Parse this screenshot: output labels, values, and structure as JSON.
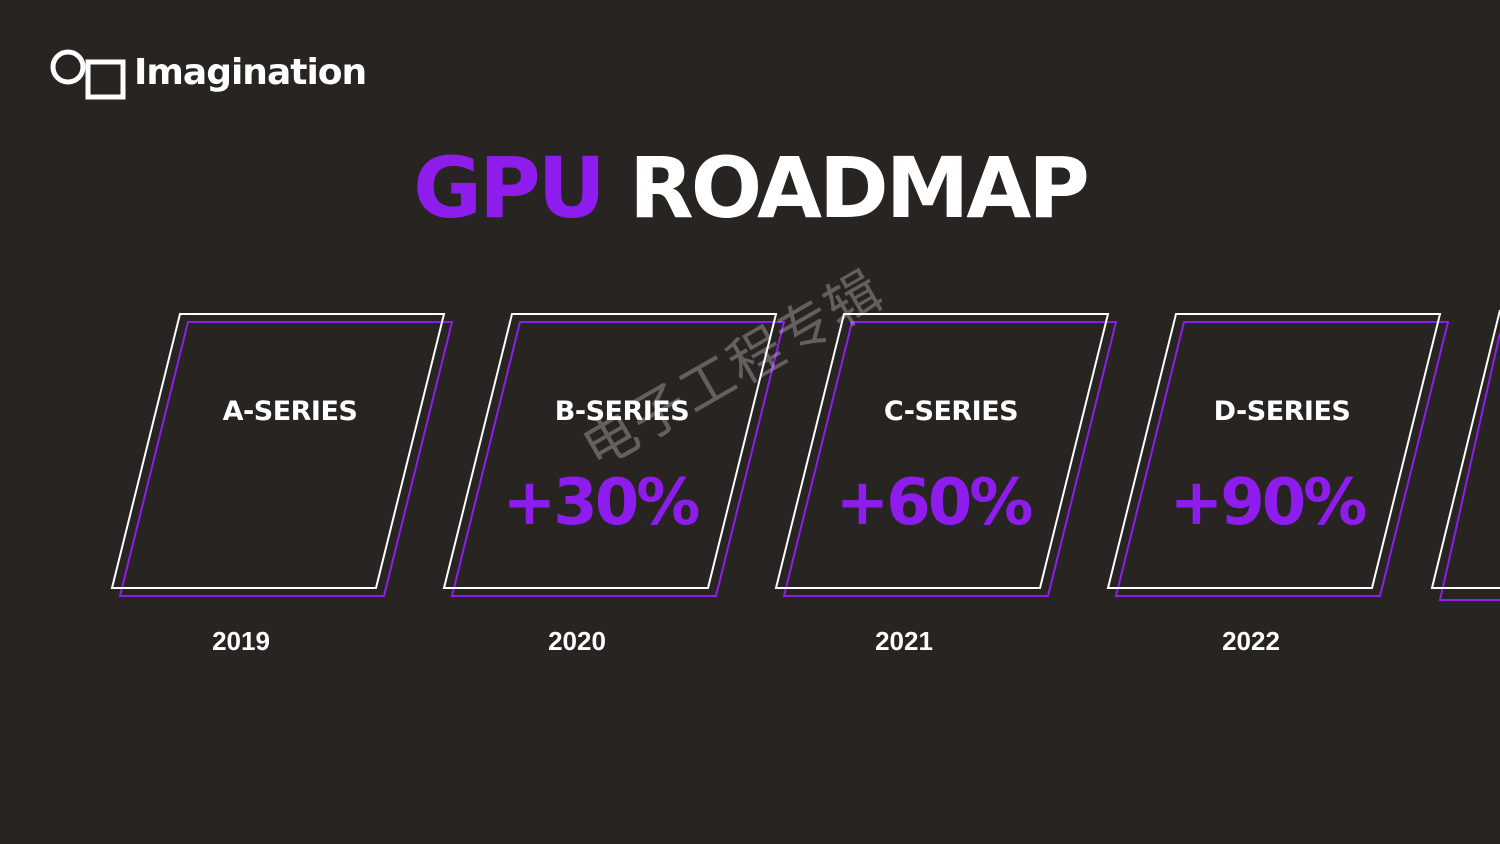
{
  "brand": {
    "logo_text": "Imagination",
    "logo_icon": "imagination-logo-icon"
  },
  "title": {
    "accent": "GPU",
    "main": "ROADMAP",
    "accent_color": "#8e1ded",
    "main_color": "#ffffff"
  },
  "colors": {
    "background": "#282421",
    "outline_white": "#ffffff",
    "outline_purple": "#8e1ded"
  },
  "roadmap": [
    {
      "series": "A-SERIES",
      "gain": "",
      "year": "2019"
    },
    {
      "series": "B-SERIES",
      "gain": "+30%",
      "year": "2020"
    },
    {
      "series": "C-SERIES",
      "gain": "+60%",
      "year": "2021"
    },
    {
      "series": "D-SERIES",
      "gain": "+90%",
      "year": "2022"
    }
  ],
  "watermark": "电子工程专辑"
}
